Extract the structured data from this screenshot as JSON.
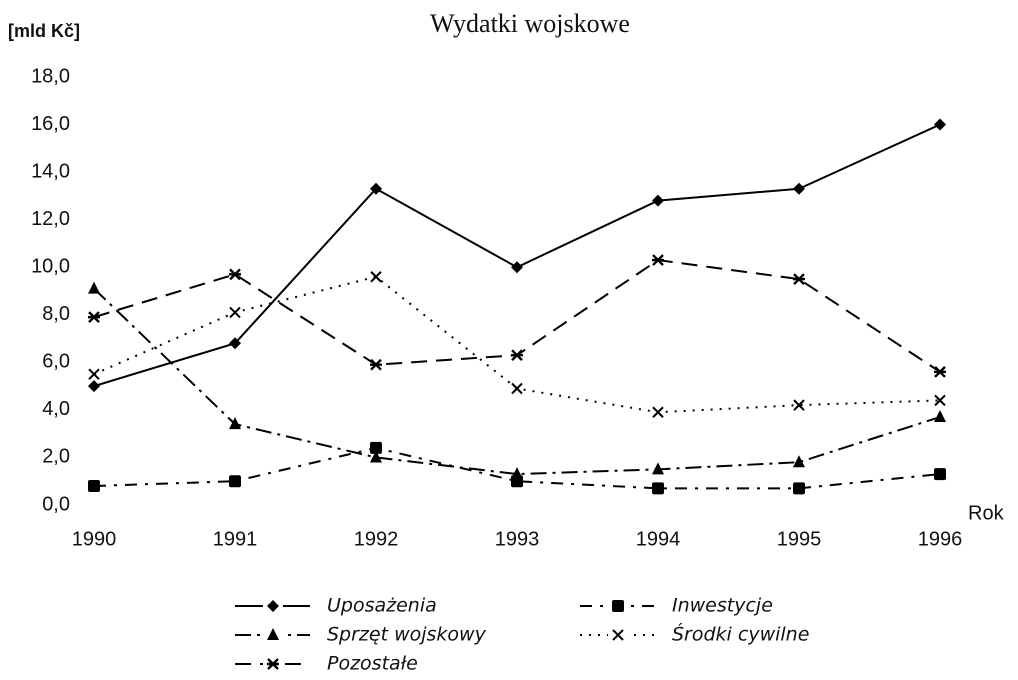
{
  "chart_data": {
    "type": "line",
    "title": "Wydatki wojskowe",
    "y_label": "[mld Kč]",
    "x_label": "Rok",
    "categories": [
      "1990",
      "1991",
      "1992",
      "1993",
      "1994",
      "1995",
      "1996"
    ],
    "ylim": [
      0,
      18
    ],
    "yticks": [
      {
        "value": 0,
        "label": "0,0"
      },
      {
        "value": 2,
        "label": "2,0"
      },
      {
        "value": 4,
        "label": "4,0"
      },
      {
        "value": 6,
        "label": "6,0"
      },
      {
        "value": 8,
        "label": "8,0"
      },
      {
        "value": 10,
        "label": "10,0"
      },
      {
        "value": 12,
        "label": "12,0"
      },
      {
        "value": 14,
        "label": "14,0"
      },
      {
        "value": 16,
        "label": "16,0"
      },
      {
        "value": 18,
        "label": "18,0"
      }
    ],
    "grid": false,
    "series": [
      {
        "name": "Uposażenia",
        "color": "#000000",
        "marker": "diamond",
        "line_style": "solid",
        "values": [
          5.0,
          6.8,
          13.3,
          10.0,
          12.8,
          13.3,
          16.0
        ]
      },
      {
        "name": "Inwestycje",
        "color": "#000000",
        "marker": "square",
        "line_style": "dash-dot",
        "values": [
          0.8,
          1.0,
          2.4,
          1.0,
          0.7,
          0.7,
          1.3
        ]
      },
      {
        "name": "Sprzęt wojskowy",
        "color": "#000000",
        "marker": "triangle",
        "line_style": "long-dash-dot",
        "values": [
          9.1,
          3.4,
          2.0,
          1.3,
          1.5,
          1.8,
          3.7
        ]
      },
      {
        "name": "Środki cywilne",
        "color": "#000000",
        "marker": "x",
        "line_style": "dotted",
        "values": [
          5.5,
          8.1,
          9.6,
          4.9,
          3.9,
          4.2,
          4.4
        ]
      },
      {
        "name": "Pozostałe",
        "color": "#000000",
        "marker": "asterisk",
        "line_style": "dashed",
        "values": [
          7.9,
          9.7,
          5.9,
          6.3,
          10.3,
          9.5,
          5.6
        ]
      }
    ]
  }
}
